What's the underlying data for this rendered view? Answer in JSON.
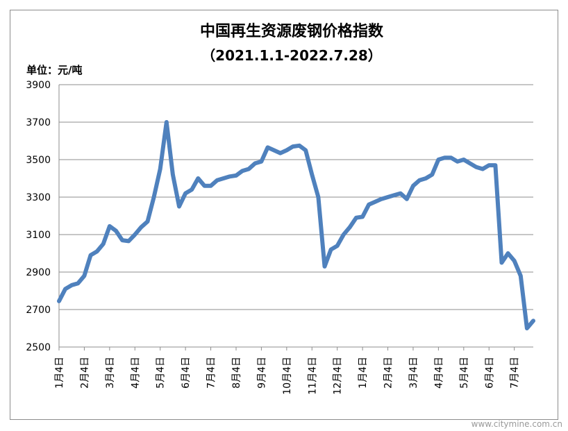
{
  "chart_data": {
    "type": "line",
    "title": "中国再生资源废钢价格指数",
    "subtitle": "（2021.1.1-2022.7.28）",
    "unit_label": "单位：元/吨",
    "watermark": "www.citymine.com.cn",
    "categories": [
      "1月4日",
      null,
      null,
      null,
      "2月4日",
      null,
      null,
      null,
      "3月4日",
      null,
      null,
      null,
      "4月4日",
      null,
      null,
      null,
      "5月4日",
      null,
      null,
      null,
      "6月4日",
      null,
      null,
      null,
      "7月4日",
      null,
      null,
      null,
      "8月4日",
      null,
      null,
      null,
      "9月4日",
      null,
      null,
      null,
      "10月4日",
      null,
      null,
      null,
      "11月4日",
      null,
      null,
      null,
      "12月4日",
      null,
      null,
      null,
      "1月4日",
      null,
      null,
      null,
      "2月4日",
      null,
      null,
      null,
      "3月4日",
      null,
      null,
      null,
      "4月4日",
      null,
      null,
      null,
      "5月4日",
      null,
      null,
      null,
      "6月4日",
      null,
      null,
      null,
      "7月4日",
      null,
      null,
      null
    ],
    "values": [
      2745,
      2810,
      2830,
      2840,
      2880,
      2990,
      3010,
      3050,
      3145,
      3120,
      3070,
      3065,
      3100,
      3140,
      3170,
      3300,
      3450,
      3700,
      3420,
      3250,
      3320,
      3340,
      3400,
      3360,
      3360,
      3390,
      3400,
      3410,
      3415,
      3440,
      3450,
      3480,
      3490,
      3565,
      3550,
      3535,
      3550,
      3570,
      3575,
      3550,
      3420,
      3300,
      2930,
      3020,
      3040,
      3100,
      3140,
      3190,
      3195,
      3260,
      3275,
      3290,
      3300,
      3310,
      3320,
      3290,
      3360,
      3390,
      3400,
      3420,
      3500,
      3510,
      3510,
      3490,
      3500,
      3480,
      3460,
      3450,
      3470,
      3470,
      2950,
      3000,
      2960,
      2880,
      2600,
      2640
    ],
    "color": "#4f81bd",
    "ylim": [
      2500,
      3900
    ],
    "yticks": [
      2500,
      2700,
      2900,
      3100,
      3300,
      3500,
      3700,
      3900
    ],
    "grid": true
  }
}
